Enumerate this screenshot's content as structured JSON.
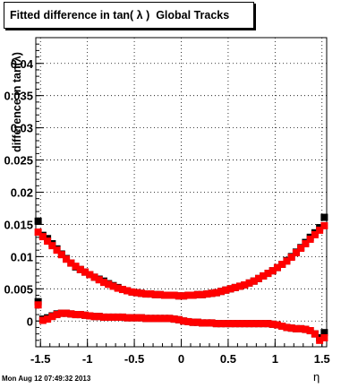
{
  "title": "Fitted difference in tan( λ )  Global Tracks",
  "footer": "Mon Aug 12 07:49:32 2013",
  "chart_data": {
    "type": "scatter",
    "xlabel": "η",
    "ylabel": "difference in tan(λ)",
    "xlim": [
      -1.55,
      1.55
    ],
    "ylim": [
      -0.004,
      0.044
    ],
    "x_ticks": [
      -1.5,
      -1,
      -0.5,
      0,
      0.5,
      1,
      1.5
    ],
    "x_tick_labels": [
      "-1.5",
      "-1",
      "-0.5",
      "0",
      "0.5",
      "1",
      "1.5"
    ],
    "y_ticks": [
      0,
      0.005,
      0.01,
      0.015,
      0.02,
      0.025,
      0.03,
      0.035,
      0.04
    ],
    "y_tick_labels": [
      "0",
      "0.005",
      "0.01",
      "0.015",
      "0.02",
      "0.025",
      "0.03",
      "0.035",
      "0.04"
    ],
    "grid": true,
    "colors": {
      "black": "#000000",
      "red": "#ff0000"
    },
    "series": [
      {
        "color": "black",
        "x": [
          -1.525,
          -1.475,
          -1.425,
          -1.375,
          -1.325,
          -1.275,
          -1.225,
          -1.175,
          -1.125,
          -1.075,
          -1.025,
          -0.975,
          -0.925,
          -0.875,
          -0.825,
          -0.775,
          -0.725,
          -0.675,
          -0.625,
          -0.575,
          -0.525,
          -0.475,
          -0.425,
          -0.375,
          -0.325,
          -0.275,
          -0.225,
          -0.175,
          -0.125,
          -0.075,
          -0.025,
          0.025,
          0.075,
          0.125,
          0.175,
          0.225,
          0.275,
          0.325,
          0.375,
          0.425,
          0.475,
          0.525,
          0.575,
          0.625,
          0.675,
          0.725,
          0.775,
          0.825,
          0.875,
          0.925,
          0.975,
          1.025,
          1.075,
          1.125,
          1.175,
          1.225,
          1.275,
          1.325,
          1.375,
          1.425,
          1.475,
          1.525
        ],
        "y": [
          0.0155,
          0.0133,
          0.0128,
          0.012,
          0.0112,
          0.0104,
          0.0097,
          0.009,
          0.0084,
          0.008,
          0.0076,
          0.0072,
          0.0068,
          0.0065,
          0.0062,
          0.0058,
          0.0055,
          0.0052,
          0.0049,
          0.0047,
          0.0045,
          0.0044,
          0.0043,
          0.0042,
          0.0042,
          0.0041,
          0.0041,
          0.004,
          0.004,
          0.004,
          0.0039,
          0.0039,
          0.004,
          0.004,
          0.0041,
          0.0041,
          0.0042,
          0.0043,
          0.0044,
          0.0046,
          0.0048,
          0.005,
          0.0052,
          0.0054,
          0.0056,
          0.0059,
          0.0062,
          0.0066,
          0.007,
          0.0074,
          0.0078,
          0.0083,
          0.0088,
          0.0094,
          0.01,
          0.0107,
          0.0114,
          0.0122,
          0.013,
          0.0137,
          0.0145,
          0.0161
        ]
      },
      {
        "color": "red",
        "x": [
          -1.525,
          -1.475,
          -1.425,
          -1.375,
          -1.325,
          -1.275,
          -1.225,
          -1.175,
          -1.125,
          -1.075,
          -1.025,
          -0.975,
          -0.925,
          -0.875,
          -0.825,
          -0.775,
          -0.725,
          -0.675,
          -0.625,
          -0.575,
          -0.525,
          -0.475,
          -0.425,
          -0.375,
          -0.325,
          -0.275,
          -0.225,
          -0.175,
          -0.125,
          -0.075,
          -0.025,
          0.025,
          0.075,
          0.125,
          0.175,
          0.225,
          0.275,
          0.325,
          0.375,
          0.425,
          0.475,
          0.525,
          0.575,
          0.625,
          0.675,
          0.725,
          0.775,
          0.825,
          0.875,
          0.925,
          0.975,
          1.025,
          1.075,
          1.125,
          1.175,
          1.225,
          1.275,
          1.325,
          1.375,
          1.425,
          1.475,
          1.525
        ],
        "y": [
          0.0138,
          0.0131,
          0.0124,
          0.0117,
          0.011,
          0.0103,
          0.0096,
          0.009,
          0.0085,
          0.008,
          0.0076,
          0.0072,
          0.0068,
          0.0064,
          0.006,
          0.0057,
          0.0054,
          0.0051,
          0.0049,
          0.0047,
          0.0045,
          0.0044,
          0.0043,
          0.0042,
          0.0042,
          0.0041,
          0.0041,
          0.004,
          0.004,
          0.004,
          0.0039,
          0.0039,
          0.004,
          0.004,
          0.0041,
          0.0041,
          0.0042,
          0.0043,
          0.0044,
          0.0046,
          0.0048,
          0.005,
          0.0052,
          0.0054,
          0.0056,
          0.0059,
          0.0062,
          0.0066,
          0.007,
          0.0074,
          0.0078,
          0.0083,
          0.0088,
          0.0093,
          0.0099,
          0.0106,
          0.0113,
          0.012,
          0.0127,
          0.0134,
          0.0141,
          0.0148
        ]
      },
      {
        "color": "black",
        "x": [
          -1.525,
          -1.475,
          -1.425,
          -1.375,
          -1.325,
          -1.275,
          -1.225,
          -1.175,
          -1.125,
          -1.075,
          -1.025,
          -0.975,
          -0.925,
          -0.875,
          -0.825,
          -0.775,
          -0.725,
          -0.675,
          -0.625,
          -0.575,
          -0.525,
          -0.475,
          -0.425,
          -0.375,
          -0.325,
          -0.275,
          -0.225,
          -0.175,
          -0.125,
          -0.075,
          -0.025,
          0.025,
          0.075,
          0.125,
          0.175,
          0.225,
          0.275,
          0.325,
          0.375,
          0.425,
          0.475,
          0.525,
          0.575,
          0.625,
          0.675,
          0.725,
          0.775,
          0.825,
          0.875,
          0.925,
          0.975,
          1.025,
          1.075,
          1.125,
          1.175,
          1.225,
          1.275,
          1.325,
          1.375,
          1.425,
          1.475,
          1.525
        ],
        "y": [
          0.003,
          0.0003,
          0.0005,
          0.0008,
          0.0011,
          0.0012,
          0.0012,
          0.0011,
          0.001,
          0.001,
          0.0009,
          0.0008,
          0.0007,
          0.0007,
          0.0006,
          0.0006,
          0.0006,
          0.0006,
          0.0006,
          0.0005,
          0.0005,
          0.0005,
          0.0005,
          0.0004,
          0.0004,
          0.0004,
          0.0004,
          0.0004,
          0.0004,
          0.0003,
          0.0002,
          0.0,
          -0.0001,
          -0.0002,
          -0.0002,
          -0.0003,
          -0.0003,
          -0.0003,
          -0.0004,
          -0.0004,
          -0.0004,
          -0.0004,
          -0.0004,
          -0.0004,
          -0.0004,
          -0.0004,
          -0.0004,
          -0.0004,
          -0.0004,
          -0.0004,
          -0.0005,
          -0.0006,
          -0.0008,
          -0.001,
          -0.0011,
          -0.0012,
          -0.0012,
          -0.0013,
          -0.0015,
          -0.002,
          -0.0026,
          -0.0018
        ]
      },
      {
        "color": "red",
        "x": [
          -1.525,
          -1.475,
          -1.425,
          -1.375,
          -1.325,
          -1.275,
          -1.225,
          -1.175,
          -1.125,
          -1.075,
          -1.025,
          -0.975,
          -0.925,
          -0.875,
          -0.825,
          -0.775,
          -0.725,
          -0.675,
          -0.625,
          -0.575,
          -0.525,
          -0.475,
          -0.425,
          -0.375,
          -0.325,
          -0.275,
          -0.225,
          -0.175,
          -0.125,
          -0.075,
          -0.025,
          0.025,
          0.075,
          0.125,
          0.175,
          0.225,
          0.275,
          0.325,
          0.375,
          0.425,
          0.475,
          0.525,
          0.575,
          0.625,
          0.675,
          0.725,
          0.775,
          0.825,
          0.875,
          0.925,
          0.975,
          1.025,
          1.075,
          1.125,
          1.175,
          1.225,
          1.275,
          1.325,
          1.375,
          1.425,
          1.475,
          1.525
        ],
        "y": [
          0.0025,
          0.0001,
          0.0003,
          0.0007,
          0.001,
          0.0012,
          0.0012,
          0.0011,
          0.001,
          0.001,
          0.0009,
          0.0008,
          0.0007,
          0.0007,
          0.0006,
          0.0006,
          0.0006,
          0.0006,
          0.0006,
          0.0005,
          0.0005,
          0.0005,
          0.0005,
          0.0004,
          0.0004,
          0.0004,
          0.0004,
          0.0004,
          0.0004,
          0.0003,
          0.0002,
          0.0,
          -0.0001,
          -0.0002,
          -0.0002,
          -0.0003,
          -0.0003,
          -0.0003,
          -0.0004,
          -0.0004,
          -0.0004,
          -0.0004,
          -0.0004,
          -0.0004,
          -0.0004,
          -0.0004,
          -0.0004,
          -0.0004,
          -0.0004,
          -0.0004,
          -0.0005,
          -0.0006,
          -0.0008,
          -0.001,
          -0.0011,
          -0.0012,
          -0.0012,
          -0.0013,
          -0.0015,
          -0.002,
          -0.003,
          -0.0026
        ]
      }
    ]
  }
}
